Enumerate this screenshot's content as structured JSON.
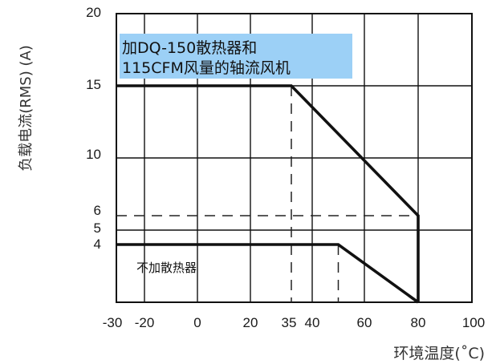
{
  "chart_data": {
    "type": "line",
    "ylabel": "负载电流(RMS) (A)",
    "xlabel": "环境温度(˚C)",
    "x_ticks": [
      "-30",
      "-20",
      "0",
      "20",
      "35",
      "40",
      "60",
      "80",
      "100"
    ],
    "y_ticks": [
      "4",
      "5",
      "6",
      "10",
      "15",
      "20"
    ],
    "xlim": [
      -30,
      100
    ],
    "ylim": [
      0,
      20
    ],
    "grid": true,
    "series": [
      {
        "name": "加DQ-150散热器和\n115CFM风量的轴流风机",
        "points": [
          [
            -30,
            15
          ],
          [
            35,
            15
          ],
          [
            80,
            6
          ],
          [
            80,
            0
          ]
        ]
      },
      {
        "name": "不加散热器",
        "points": [
          [
            -30,
            4
          ],
          [
            50,
            4
          ],
          [
            80,
            0
          ]
        ]
      }
    ],
    "reference_lines": [
      {
        "type": "vertical",
        "x": 35,
        "y_from": 0,
        "y_to": 15
      },
      {
        "type": "vertical",
        "x": 50,
        "y_from": 0,
        "y_to": 4
      },
      {
        "type": "horizontal",
        "y": 6,
        "x_from": -30,
        "x_to": 80
      }
    ],
    "annotations": [
      {
        "text_lines": [
          "加DQ-150散热器和",
          "115CFM风量的轴流风机"
        ],
        "box_color": "#9cd0f6"
      },
      {
        "text_lines": [
          "不加散热器"
        ]
      }
    ]
  }
}
